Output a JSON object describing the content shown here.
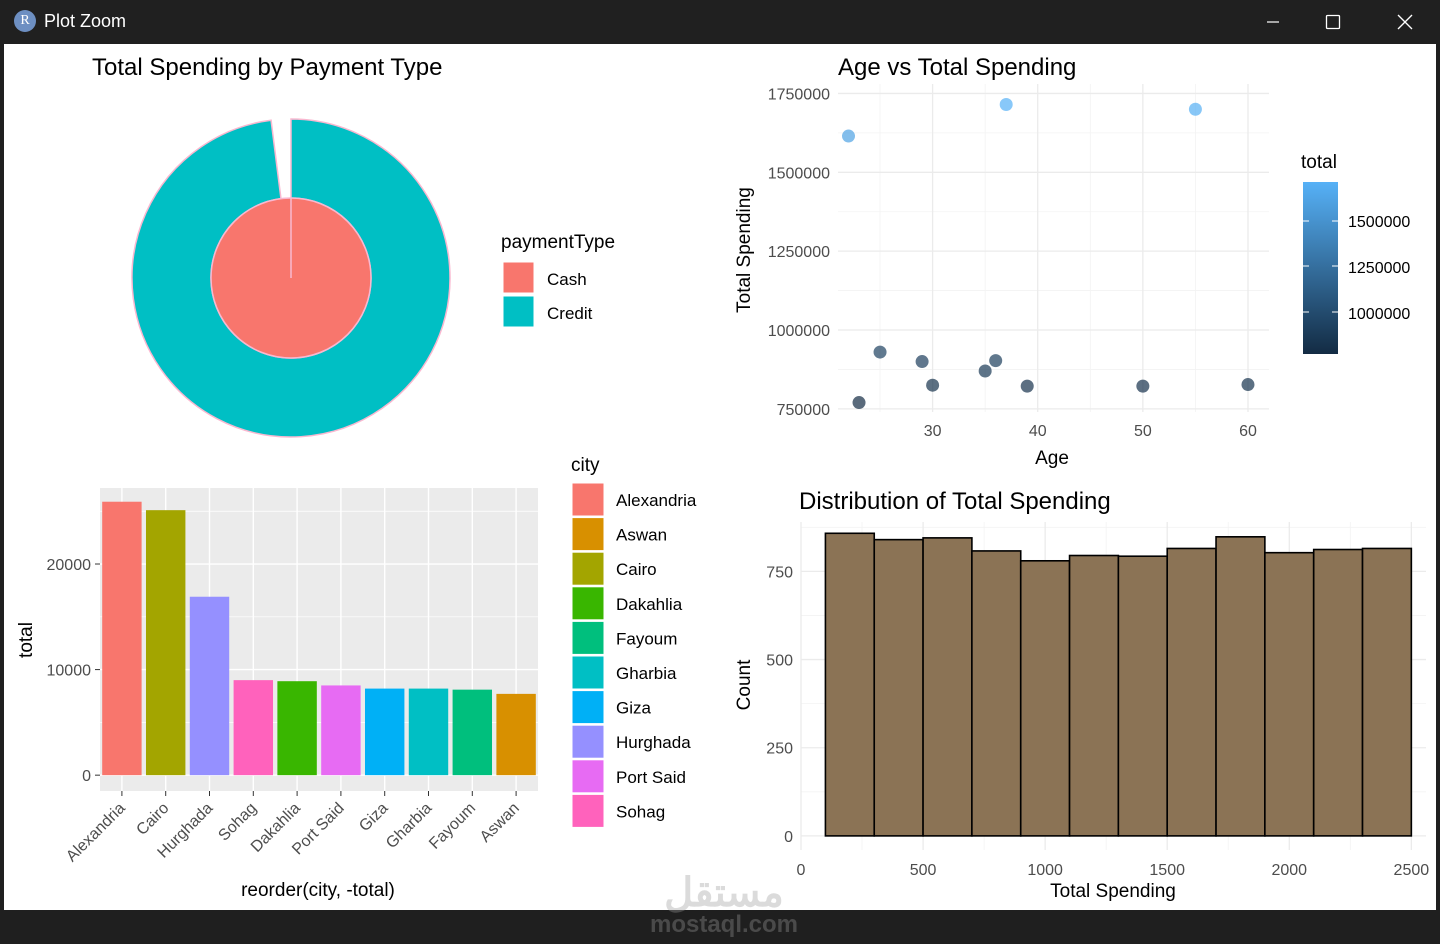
{
  "window": {
    "title": "Plot Zoom",
    "icon_letter": "R"
  },
  "pie": {
    "title": "Total Spending by Payment Type",
    "legend_title": "paymentType",
    "labels": [
      "Cash",
      "Credit"
    ],
    "colors": [
      "#F8766D",
      "#00BFC4"
    ],
    "credit_fraction": 0.98
  },
  "scatter": {
    "title": "Age vs Total Spending",
    "xlabel": "Age",
    "ylabel": "Total Spending",
    "xticks": [
      "30",
      "40",
      "50",
      "60"
    ],
    "yticks": [
      "750000",
      "1000000",
      "1250000",
      "1500000",
      "1750000"
    ],
    "legend_title": "total",
    "legend_ticks": [
      "1500000",
      "1250000",
      "1000000"
    ]
  },
  "bar": {
    "xlabel": "reorder(city, -total)",
    "ylabel": "total",
    "yticks": [
      "0",
      "10000",
      "20000"
    ],
    "legend_title": "city",
    "legend_items": [
      "Alexandria",
      "Aswan",
      "Cairo",
      "Dakahlia",
      "Fayoum",
      "Gharbia",
      "Giza",
      "Hurghada",
      "Port Said",
      "Sohag"
    ],
    "legend_colors": [
      "#F8766D",
      "#D89000",
      "#A3A500",
      "#39B600",
      "#00BF7D",
      "#00BFC4",
      "#00B0F6",
      "#9590FF",
      "#E76BF3",
      "#FF62BC"
    ]
  },
  "hist": {
    "title": "Distribution of Total Spending",
    "xlabel": "Total Spending",
    "ylabel": "Count",
    "xticks": [
      "0",
      "500",
      "1000",
      "1500",
      "2000",
      "2500"
    ],
    "yticks": [
      "0",
      "250",
      "500",
      "750"
    ],
    "fill": "#8B7355"
  },
  "watermark": {
    "arabic": "مستقل",
    "latin": "mostaql.com"
  },
  "chart_data": [
    {
      "type": "pie",
      "title": "Total Spending by Payment Type",
      "legend_title": "paymentType",
      "categories": [
        "Cash",
        "Credit"
      ],
      "values": [
        2,
        98
      ],
      "note_layers": "Cash drawn as inner disc, Credit as outer ring"
    },
    {
      "type": "scatter",
      "title": "Age vs Total Spending",
      "xlabel": "Age",
      "ylabel": "Total Spending",
      "xlim": [
        21,
        62
      ],
      "ylim": [
        740000,
        1780000
      ],
      "x": [
        22,
        23,
        25,
        29,
        30,
        35,
        36,
        37,
        39,
        50,
        55,
        60
      ],
      "y": [
        1615000,
        770000,
        930000,
        900000,
        825000,
        870000,
        903000,
        1715000,
        822000,
        822000,
        1700000,
        827000
      ],
      "color_scale": "total (continuous, dark blue to light blue)"
    },
    {
      "type": "bar",
      "xlabel": "reorder(city, -total)",
      "ylabel": "total",
      "categories": [
        "Alexandria",
        "Cairo",
        "Hurghada",
        "Sohag",
        "Dakahlia",
        "Port Said",
        "Giza",
        "Gharbia",
        "Fayoum",
        "Aswan"
      ],
      "values": [
        25900,
        25100,
        16900,
        9000,
        8900,
        8500,
        8200,
        8200,
        8100,
        7700
      ],
      "colors": [
        "#F8766D",
        "#A3A500",
        "#9590FF",
        "#FF62BC",
        "#39B600",
        "#E76BF3",
        "#00B0F6",
        "#00BFC4",
        "#00BF7D",
        "#D89000"
      ],
      "ylim": [
        -1500,
        27200
      ]
    },
    {
      "type": "bar",
      "subtype": "histogram",
      "title": "Distribution of Total Spending",
      "xlabel": "Total Spending",
      "ylabel": "Count",
      "bin_edges": [
        100,
        300,
        500,
        700,
        900,
        1100,
        1300,
        1500,
        1700,
        1900,
        2100,
        2300,
        2500
      ],
      "values": [
        858,
        840,
        845,
        808,
        780,
        795,
        793,
        815,
        848,
        803,
        812,
        815
      ],
      "xlim": [
        0,
        2560
      ],
      "ylim": [
        -40,
        890
      ]
    }
  ]
}
